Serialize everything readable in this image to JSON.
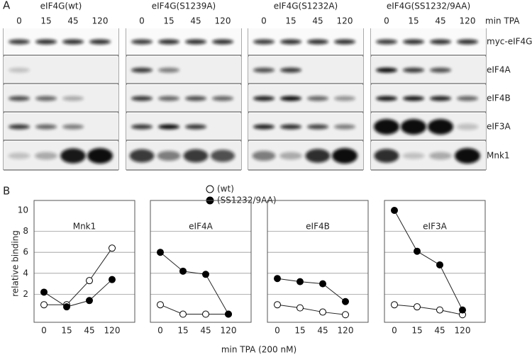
{
  "panel_a": {
    "label": "A",
    "unit_label": "min TPA",
    "groups": [
      {
        "title": "eIF4G(wt)",
        "lanes": [
          "0",
          "15",
          "45",
          "120"
        ]
      },
      {
        "title": "eIF4G(S1239A)",
        "lanes": [
          "0",
          "15",
          "45",
          "120"
        ]
      },
      {
        "title": "eIF4G(S1232A)",
        "lanes": [
          "0",
          "15",
          "45",
          "120"
        ]
      },
      {
        "title": "eIF4G(SS1232/9AA)",
        "lanes": [
          "0",
          "15",
          "45",
          "120"
        ]
      }
    ],
    "rows": [
      "myc-eIF4G",
      "eIF4A",
      "eIF4B",
      "eIF3A",
      "Mnk1"
    ]
  },
  "panel_b": {
    "label": "B",
    "ylabel": "relative binding",
    "xlabel": "min TPA (200 nM)"
  },
  "chart_data": [
    {
      "type": "line",
      "title": "Mnk1",
      "categories": [
        "0",
        "15",
        "45",
        "120"
      ],
      "ylim": [
        0,
        10
      ],
      "yticks": [
        2,
        4,
        6,
        8,
        10
      ],
      "grid": true,
      "series": [
        {
          "name": "(wt)",
          "color": "#ffffff",
          "values": [
            1,
            1,
            3.3,
            6.4
          ]
        },
        {
          "name": "(SS1232/9AA)",
          "color": "#000000",
          "values": [
            2.2,
            0.8,
            1.4,
            3.4
          ]
        }
      ]
    },
    {
      "type": "line",
      "title": "eIF4A",
      "categories": [
        "0",
        "15",
        "45",
        "120"
      ],
      "ylim": [
        0,
        10
      ],
      "yticks": [
        2,
        4,
        6,
        8,
        10
      ],
      "grid": true,
      "series": [
        {
          "name": "(wt)",
          "color": "#ffffff",
          "values": [
            1,
            0.1,
            0.1,
            0.1
          ]
        },
        {
          "name": "(SS1232/9AA)",
          "color": "#000000",
          "values": [
            6,
            4.2,
            3.9,
            0.1
          ]
        }
      ]
    },
    {
      "type": "line",
      "title": "eIF4B",
      "categories": [
        "0",
        "15",
        "45",
        "120"
      ],
      "ylim": [
        0,
        10
      ],
      "yticks": [
        2,
        4,
        6,
        8,
        10
      ],
      "grid": true,
      "series": [
        {
          "name": "(wt)",
          "color": "#ffffff",
          "values": [
            1,
            0.7,
            0.3,
            0.05
          ]
        },
        {
          "name": "(SS1232/9AA)",
          "color": "#000000",
          "values": [
            3.5,
            3.2,
            3,
            1.3
          ]
        }
      ]
    },
    {
      "type": "line",
      "title": "eIF3A",
      "categories": [
        "0",
        "15",
        "45",
        "120"
      ],
      "ylim": [
        0,
        10
      ],
      "yticks": [
        2,
        4,
        6,
        8,
        10
      ],
      "grid": true,
      "series": [
        {
          "name": "(wt)",
          "color": "#ffffff",
          "values": [
            1,
            0.8,
            0.5,
            0.05
          ]
        },
        {
          "name": "(SS1232/9AA)",
          "color": "#000000",
          "values": [
            10,
            6.1,
            4.8,
            0.5
          ]
        }
      ]
    }
  ]
}
